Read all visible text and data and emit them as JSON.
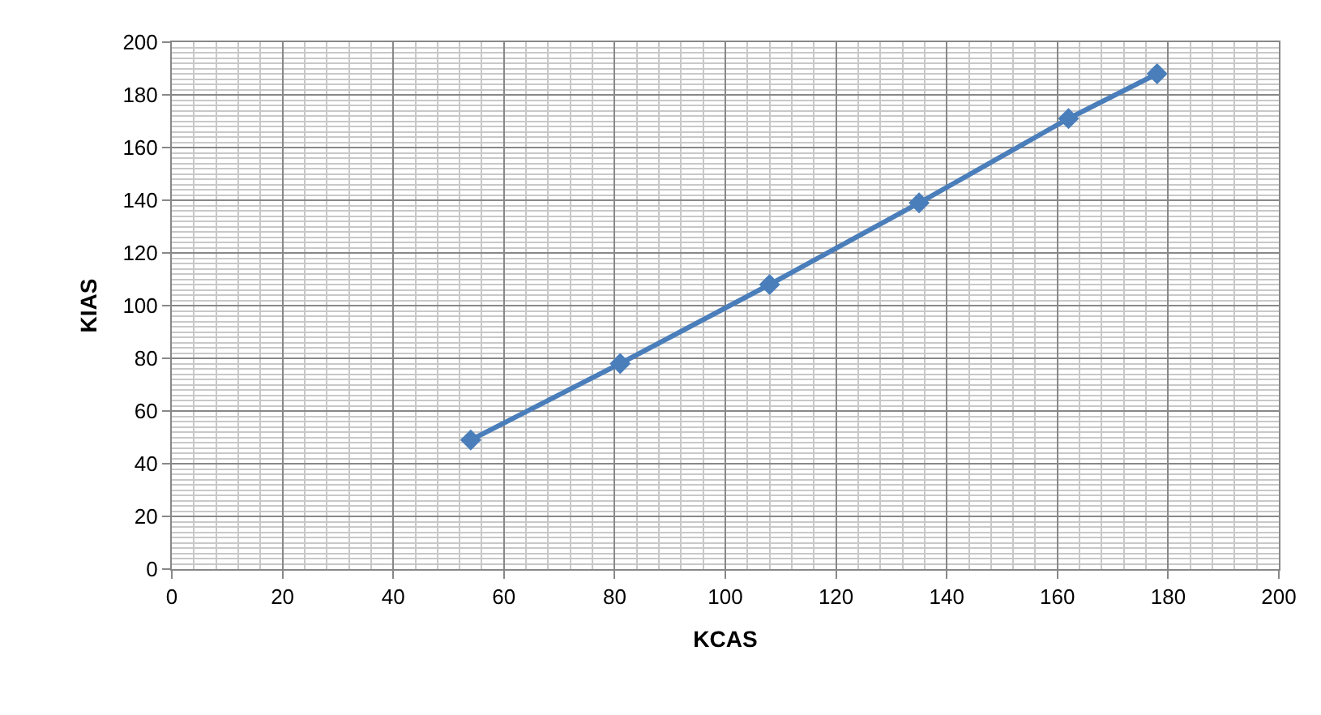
{
  "chart_data": {
    "type": "line",
    "xlabel": "KCAS",
    "ylabel": "KIAS",
    "x": [
      54,
      81,
      108,
      135,
      162,
      178
    ],
    "series": [
      {
        "color": "#4a7ebb",
        "values": [
          49,
          78,
          108,
          139,
          171,
          188
        ]
      }
    ],
    "xlim": [
      0,
      200
    ],
    "xticks": [
      0,
      20,
      40,
      60,
      80,
      100,
      120,
      140,
      160,
      180,
      200
    ],
    "ylim": [
      0,
      200
    ],
    "yticks": [
      0,
      20,
      40,
      60,
      80,
      100,
      120,
      140,
      160,
      180,
      200
    ],
    "grid": true,
    "marker": "diamond",
    "line_style": "solid"
  }
}
